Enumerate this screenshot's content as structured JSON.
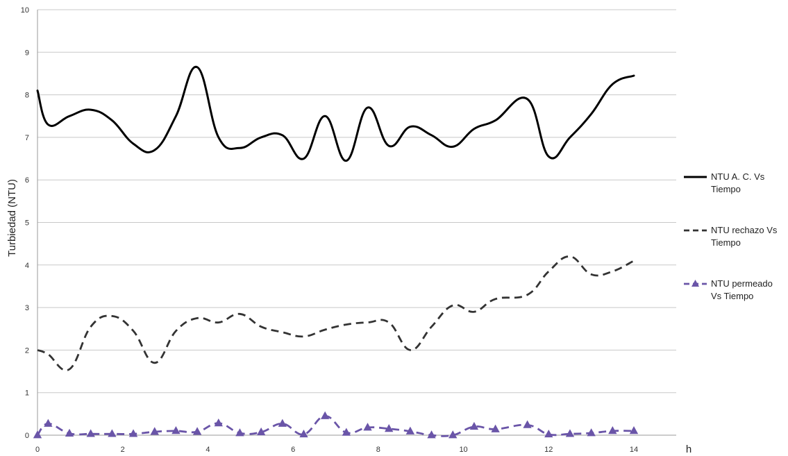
{
  "chart_data": {
    "type": "line",
    "ylabel": "Turbiedad (NTU)",
    "xlabel": "h",
    "xlim": [
      0,
      14
    ],
    "ylim": [
      0,
      10
    ],
    "x_ticks": [
      0,
      2,
      4,
      6,
      8,
      10,
      12,
      14
    ],
    "y_ticks": [
      0,
      1,
      2,
      3,
      4,
      5,
      6,
      7,
      8,
      9,
      10
    ],
    "grid": "horizontal",
    "legend_position": "right",
    "x": [
      0,
      0.25,
      0.75,
      1.25,
      1.75,
      2.25,
      2.75,
      3.25,
      3.75,
      4.25,
      4.75,
      5.25,
      5.75,
      6.25,
      6.75,
      7.25,
      7.75,
      8.25,
      8.75,
      9.25,
      9.75,
      10.25,
      10.75,
      11.5,
      12,
      12.5,
      13,
      13.5,
      14
    ],
    "series": [
      {
        "name": "NTU A. C. Vs Tiempo",
        "legend_lines": [
          "NTU A. C. Vs",
          "Tiempo"
        ],
        "color": "#000000",
        "style": "solid",
        "values": [
          8.1,
          7.3,
          7.5,
          7.65,
          7.4,
          6.85,
          6.7,
          7.5,
          8.65,
          7.0,
          6.75,
          7.0,
          7.05,
          6.5,
          7.5,
          6.45,
          7.7,
          6.8,
          7.25,
          7.05,
          6.78,
          7.2,
          7.4,
          7.9,
          6.55,
          7.0,
          7.55,
          8.25,
          8.45
        ]
      },
      {
        "name": "NTU rechazo Vs Tiempo",
        "legend_lines": [
          "NTU rechazo Vs",
          "Tiempo"
        ],
        "color": "#333333",
        "style": "dashed",
        "values": [
          2.0,
          1.9,
          1.55,
          2.55,
          2.8,
          2.45,
          1.7,
          2.45,
          2.75,
          2.65,
          2.85,
          2.55,
          2.42,
          2.32,
          2.48,
          2.6,
          2.65,
          2.65,
          2.0,
          2.55,
          3.05,
          2.9,
          3.2,
          3.3,
          3.85,
          4.2,
          3.78,
          3.85,
          4.1
        ]
      },
      {
        "name": "NTU permeado Vs Tiempo",
        "legend_lines": [
          "NTU permeado",
          "Vs Tiempo"
        ],
        "color": "#6a55a8",
        "style": "dashed-markers",
        "marker": "triangle",
        "values": [
          0.0,
          0.27,
          0.04,
          0.03,
          0.03,
          0.03,
          0.08,
          0.1,
          0.08,
          0.28,
          0.05,
          0.07,
          0.27,
          0.02,
          0.45,
          0.06,
          0.18,
          0.15,
          0.09,
          0.0,
          0.0,
          0.2,
          0.14,
          0.24,
          0.02,
          0.03,
          0.05,
          0.1,
          0.1
        ]
      }
    ]
  }
}
